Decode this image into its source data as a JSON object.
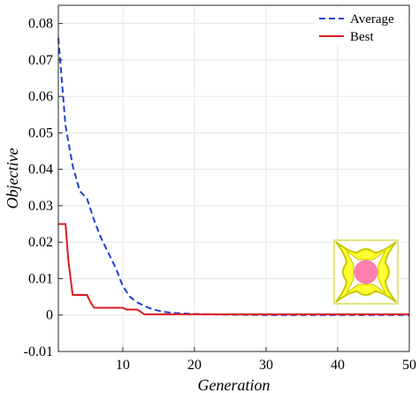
{
  "chart_data": {
    "type": "line",
    "xlabel": "Generation",
    "ylabel": "Objective",
    "xlim": [
      1,
      50
    ],
    "ylim": [
      -0.01,
      0.085
    ],
    "xticks": [
      10,
      20,
      30,
      40,
      50
    ],
    "yticks": [
      -0.01,
      0,
      0.01,
      0.02,
      0.03,
      0.04,
      0.05,
      0.06,
      0.07,
      0.08
    ],
    "ytick_labels": [
      "-0.01",
      "0",
      "0.01",
      "0.02",
      "0.03",
      "0.04",
      "0.05",
      "0.06",
      "0.07",
      "0.08"
    ],
    "xtick_labels": [
      "10",
      "20",
      "30",
      "40",
      "50"
    ],
    "grid": true,
    "legend_position": "top-right",
    "series": [
      {
        "name": "Average",
        "style": "dashed",
        "color": "#1f3fd8",
        "x": [
          1,
          2,
          3,
          4,
          5,
          6,
          7,
          8,
          9,
          10,
          11,
          12,
          13,
          14,
          15,
          16,
          17,
          18,
          19,
          20,
          22,
          25,
          30,
          40,
          50
        ],
        "y": [
          0.076,
          0.052,
          0.041,
          0.034,
          0.032,
          0.026,
          0.021,
          0.017,
          0.013,
          0.008,
          0.005,
          0.0035,
          0.0025,
          0.0017,
          0.0012,
          0.0008,
          0.0006,
          0.0005,
          0.0004,
          0.0003,
          0.0002,
          0.0001,
          0.0,
          0.0,
          0.0
        ]
      },
      {
        "name": "Best",
        "style": "solid",
        "color": "#e0191f",
        "x": [
          1,
          2,
          2.4,
          3,
          5,
          5.5,
          6,
          10,
          10.5,
          12,
          12.4,
          13,
          50
        ],
        "y": [
          0.025,
          0.025,
          0.015,
          0.0055,
          0.0055,
          0.0035,
          0.002,
          0.002,
          0.0015,
          0.0015,
          0.001,
          0.0002,
          0.0002
        ]
      }
    ],
    "colors": {
      "inset_frame": "#c8c800",
      "inset_fill": "#ffff33",
      "inset_circle": "#ff7fb0"
    }
  }
}
